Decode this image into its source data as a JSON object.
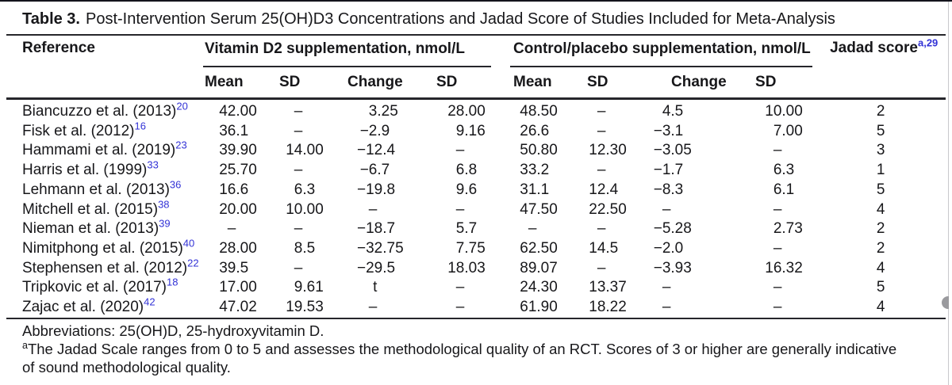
{
  "colors": {
    "citation_blue": "#3232d6",
    "rule": "#26262b",
    "text": "#17171a"
  },
  "caption": {
    "label": "Table 3.",
    "text": "Post-Intervention Serum 25(OH)D3 Concentrations and Jadad Score of Studies Included for Meta-Analysis"
  },
  "table": {
    "reference_header": "Reference",
    "group_d2": "Vitamin D2 supplementation, nmol/L",
    "group_control": "Control/placebo supplementation, nmol/L",
    "jadad_header": "Jadad score",
    "jadad_superscript": "a,29",
    "subheaders": [
      "Mean",
      "SD",
      "Change",
      "SD",
      "Mean",
      "SD",
      "Change",
      "SD"
    ],
    "rows": [
      {
        "reference": "Biancuzzo et al. (2013)",
        "citation": "20",
        "values": [
          "42.00",
          "–",
          "3.25",
          "28.00",
          "48.50",
          "–",
          "4.5",
          "10.00",
          "2"
        ]
      },
      {
        "reference": "Fisk et al. (2012)",
        "citation": "16",
        "values": [
          "36.1",
          "–",
          "−2.9",
          "9.16",
          "26.6",
          "–",
          "−3.1",
          "7.00",
          "5"
        ]
      },
      {
        "reference": "Hammami et al. (2019)",
        "citation": "23",
        "values": [
          "39.90",
          "14.00",
          "−12.4",
          "–",
          "50.80",
          "12.30",
          "−3.05",
          "–",
          "3"
        ]
      },
      {
        "reference": "Harris et al. (1999)",
        "citation": "33",
        "values": [
          "25.70",
          "–",
          "−6.7",
          "6.8",
          "33.2",
          "–",
          "−1.7",
          "6.3",
          "1"
        ]
      },
      {
        "reference": "Lehmann et al. (2013)",
        "citation": "36",
        "values": [
          "16.6",
          "6.3",
          "−19.8",
          "9.6",
          "31.1",
          "12.4",
          "−8.3",
          "6.1",
          "5"
        ]
      },
      {
        "reference": "Mitchell et al. (2015)",
        "citation": "38",
        "values": [
          "20.00",
          "10.00",
          "–",
          "–",
          "47.50",
          "22.50",
          "–",
          "–",
          "4"
        ]
      },
      {
        "reference": "Nieman et al. (2013)",
        "citation": "39",
        "values": [
          "–",
          "–",
          "−18.7",
          "5.7",
          "–",
          "–",
          "−5.28",
          "2.73",
          "2"
        ]
      },
      {
        "reference": "Nimitphong et al. (2015)",
        "citation": "40",
        "values": [
          "28.00",
          "8.5",
          "−32.75",
          "7.75",
          "62.50",
          "14.5",
          "−2.0",
          "–",
          "2"
        ]
      },
      {
        "reference": "Stephensen et al. (2012)",
        "citation": "22",
        "values": [
          "39.5",
          "–",
          "−29.5",
          "18.03",
          "89.07",
          "–",
          "−3.93",
          "16.32",
          "4"
        ]
      },
      {
        "reference": "Tripkovic et al. (2017)",
        "citation": "18",
        "values": [
          "17.00",
          "9.61",
          "t",
          "–",
          "24.30",
          "13.37",
          "–",
          "–",
          "5"
        ]
      },
      {
        "reference": "Zajac et al. (2020)",
        "citation": "42",
        "values": [
          "47.02",
          "19.53",
          "–",
          "–",
          "61.90",
          "18.22",
          "–",
          "–",
          "4"
        ]
      }
    ]
  },
  "footnotes": {
    "abbreviations": "Abbreviations: 25(OH)D, 25-hydroxyvitamin D.",
    "jadad_marker": "a",
    "jadad_line1": "The Jadad Scale ranges from 0 to 5 and assesses the methodological quality of an RCT. Scores of 3 or higher are generally indicative",
    "jadad_line2": "of sound methodological quality."
  }
}
